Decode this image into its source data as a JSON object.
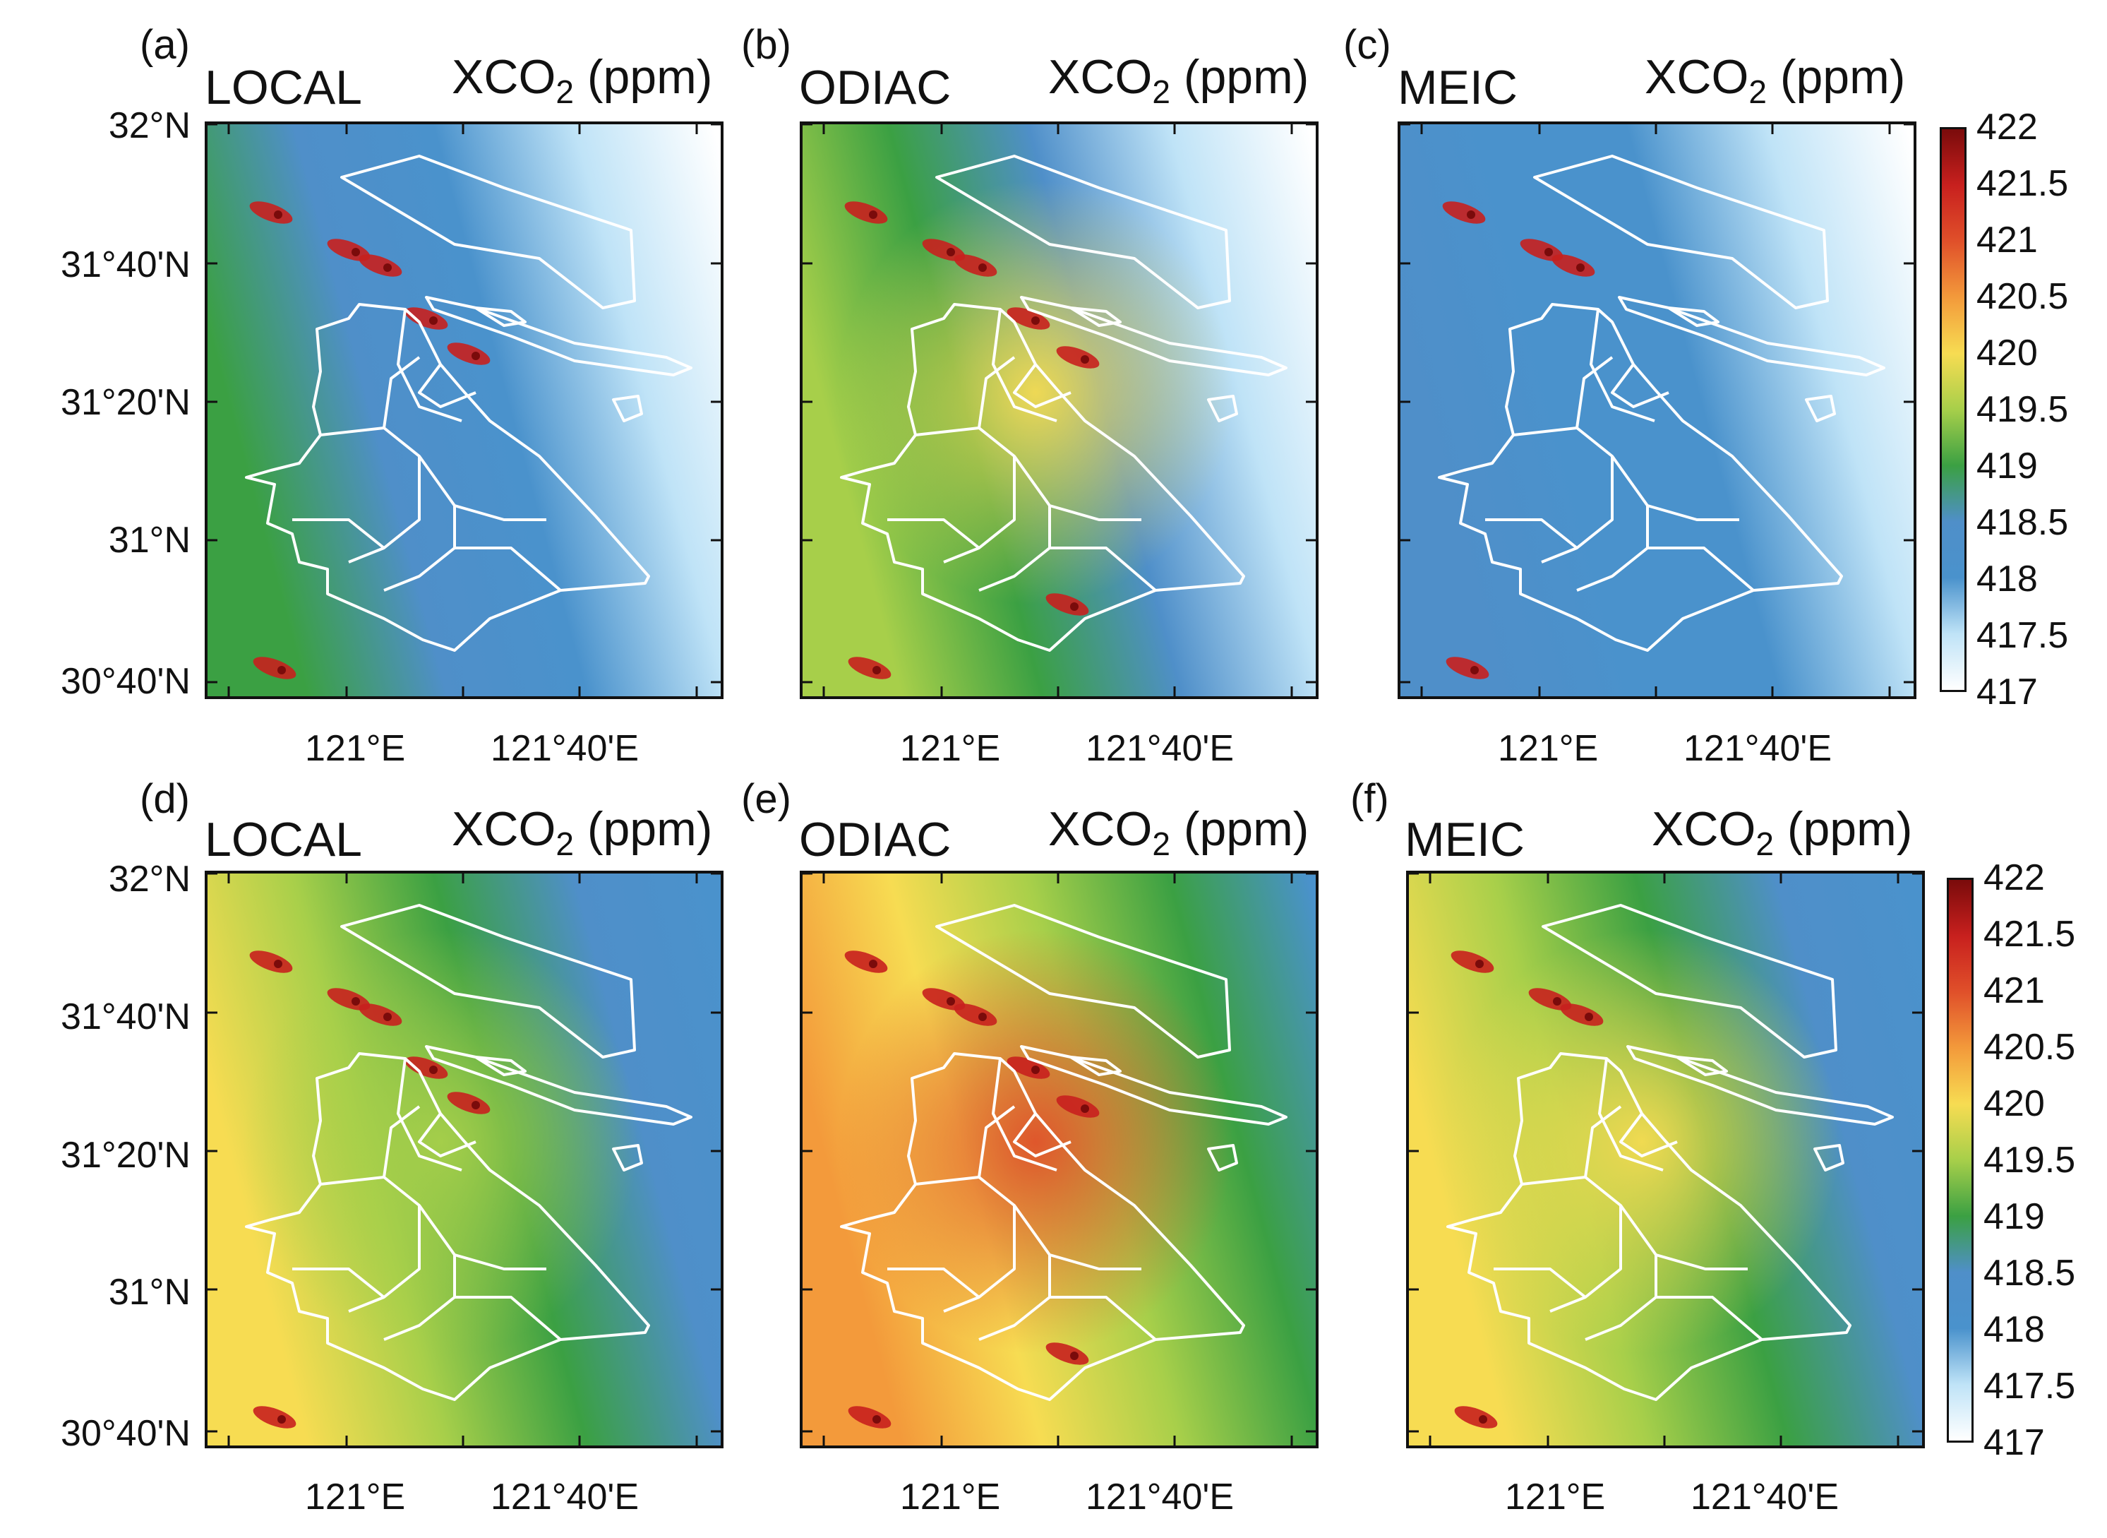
{
  "figure": {
    "variable": {
      "main": "XCO",
      "sub": "2",
      "unit": " (ppm)"
    },
    "lat_labels": [
      "32°N",
      "31°40'N",
      "31°20'N",
      "31°N",
      "30°40'N"
    ],
    "lon_labels": [
      "121°E",
      "121°40'E"
    ],
    "panels": [
      {
        "id": "a",
        "label": "(a)",
        "source": "LOCAL"
      },
      {
        "id": "b",
        "label": "(b)",
        "source": "ODIAC"
      },
      {
        "id": "c",
        "label": "(c)",
        "source": "MEIC"
      },
      {
        "id": "d",
        "label": "(d)",
        "source": "LOCAL"
      },
      {
        "id": "e",
        "label": "(e)",
        "source": "ODIAC"
      },
      {
        "id": "f",
        "label": "(f)",
        "source": "MEIC"
      }
    ],
    "colorbar": {
      "ticks": [
        "422",
        "421.5",
        "421",
        "420.5",
        "420",
        "419.5",
        "419",
        "418.5",
        "418",
        "417.5",
        "417"
      ],
      "colors": {
        "c417": "#ffffff",
        "c417_5": "#bfe3f7",
        "c418": "#4a92cc",
        "c418_5": "#4f8fc9",
        "c419": "#3ba043",
        "c419_5": "#a7cf4a",
        "c420": "#f7dc52",
        "c420_5": "#f39a3b",
        "c421": "#e0502a",
        "c421_5": "#c8201e",
        "c422": "#7a0b0b"
      }
    }
  }
}
